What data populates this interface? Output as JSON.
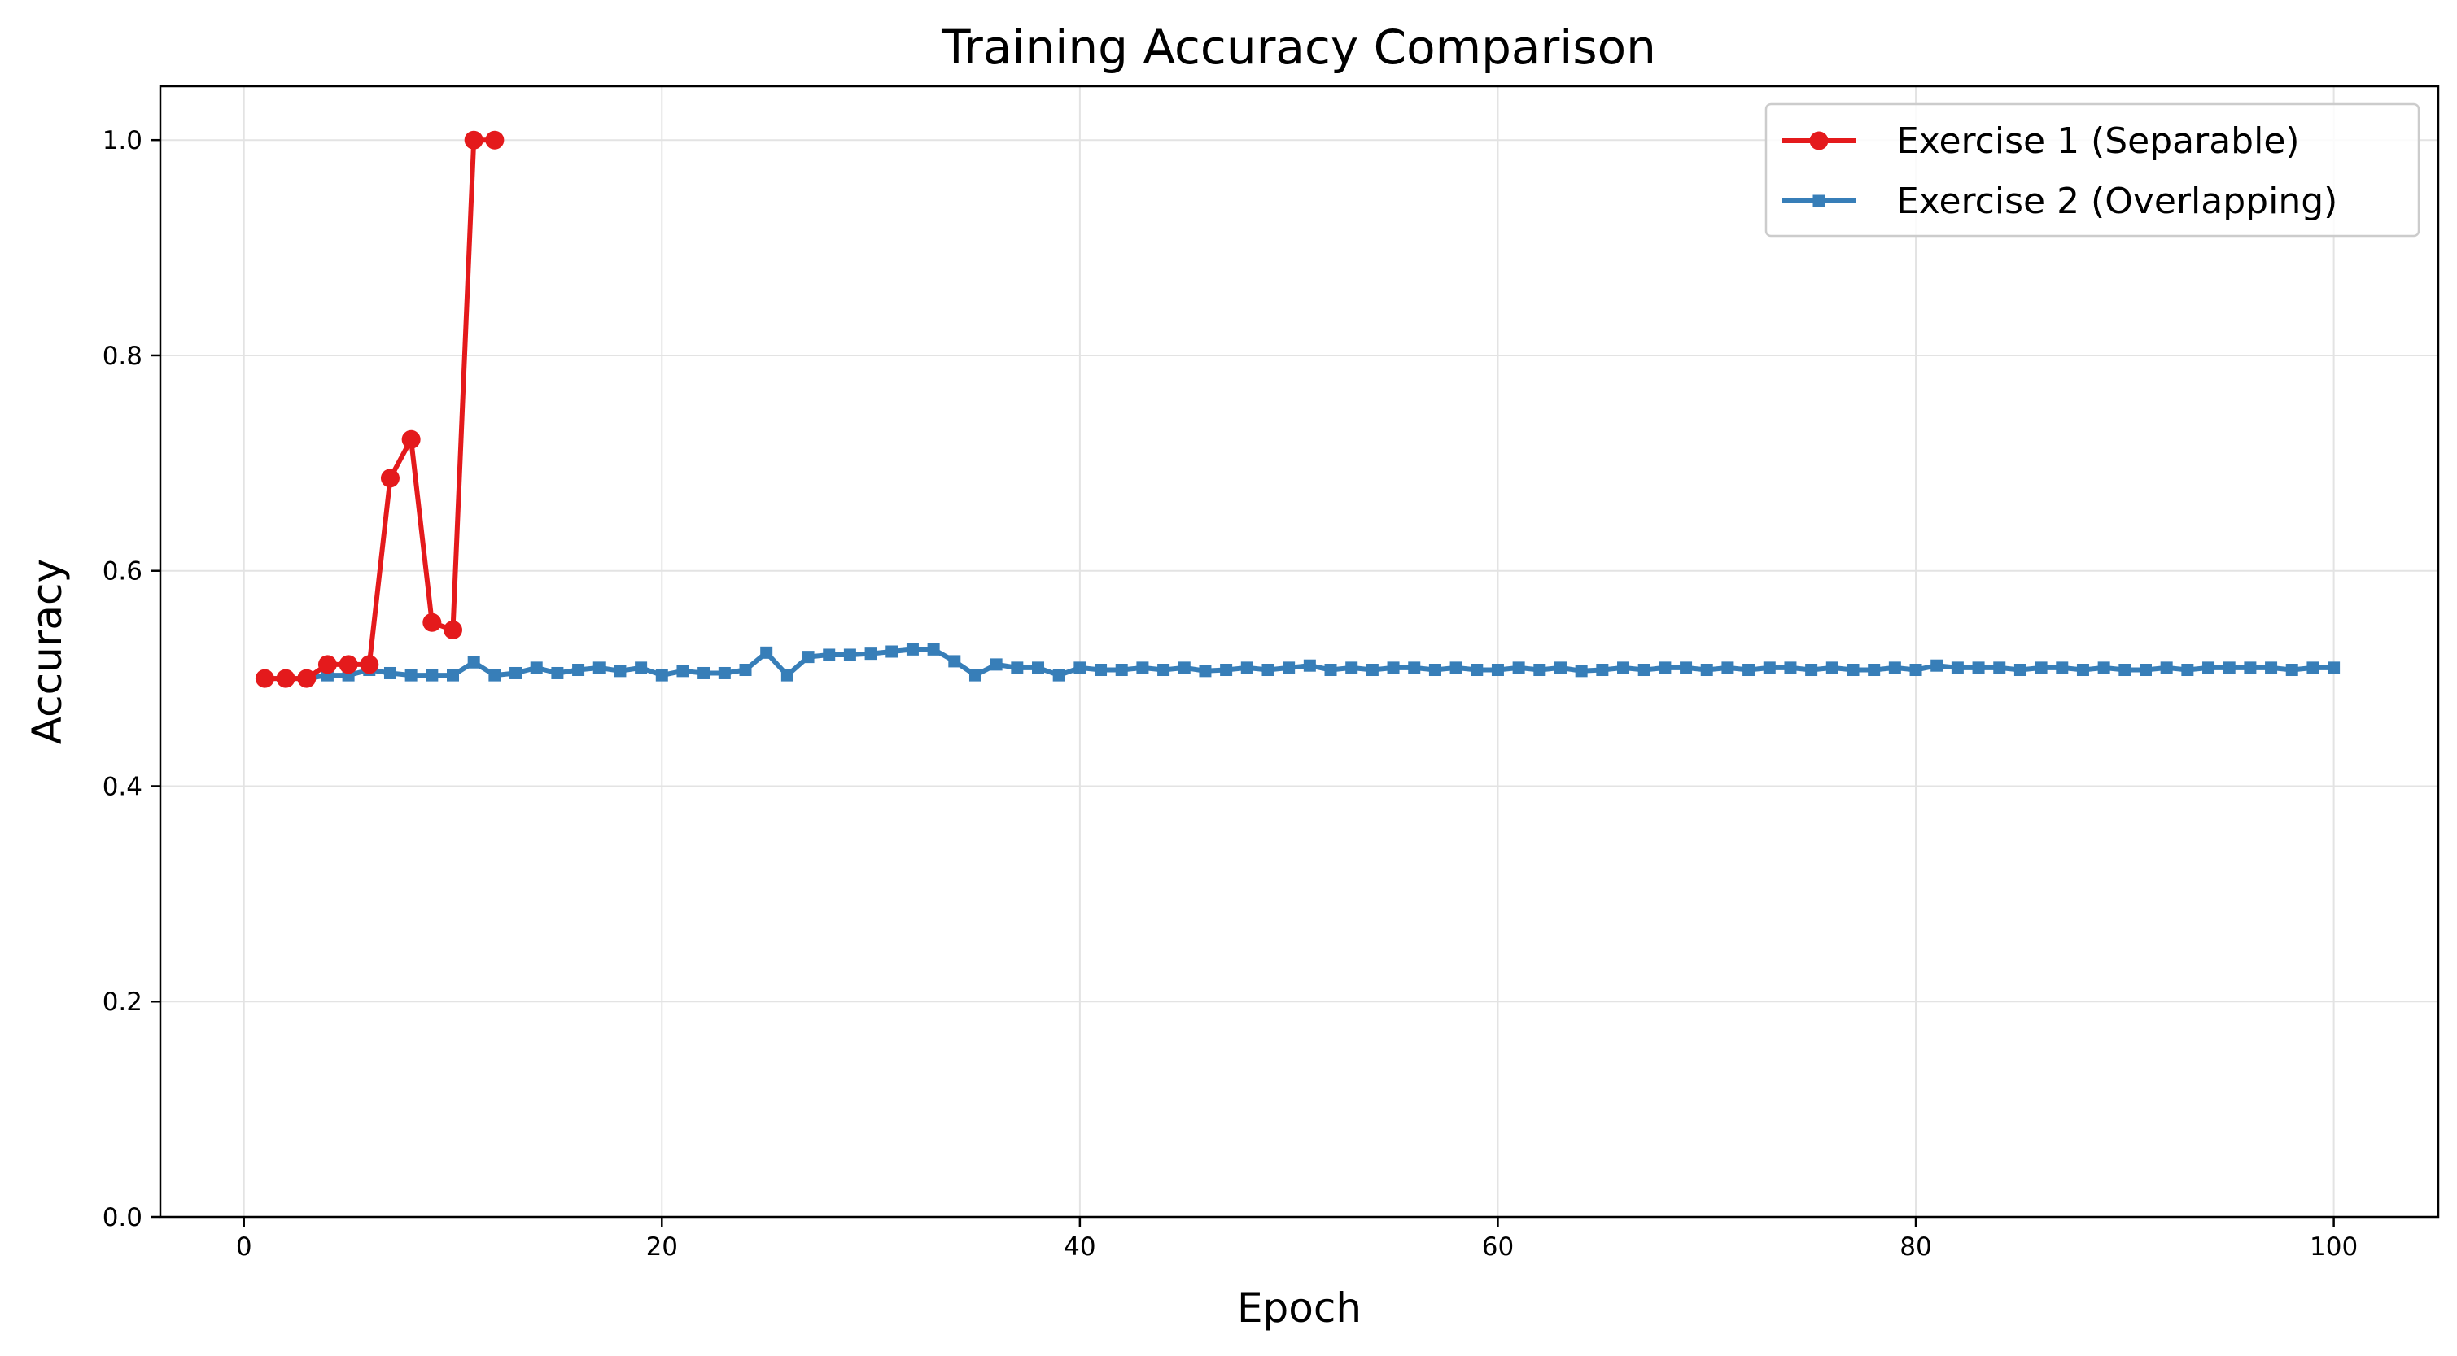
{
  "chart_data": {
    "type": "line",
    "title": "Training Accuracy Comparison",
    "xlabel": "Epoch",
    "ylabel": "Accuracy",
    "xlim": [
      -4,
      105
    ],
    "ylim": [
      0,
      1.05
    ],
    "xticks": [
      0,
      20,
      40,
      60,
      80,
      100
    ],
    "yticks": [
      0.0,
      0.2,
      0.4,
      0.6,
      0.8,
      1.0
    ],
    "xtick_labels": [
      "0",
      "20",
      "40",
      "60",
      "80",
      "100"
    ],
    "ytick_labels": [
      "0.0",
      "0.2",
      "0.4",
      "0.6",
      "0.8",
      "1.0"
    ],
    "grid": true,
    "legend_position": "top-right",
    "series": [
      {
        "name": "Exercise 1 (Separable)",
        "color": "#e41a1c",
        "marker": "circle",
        "x": [
          1,
          2,
          3,
          4,
          5,
          6,
          7,
          8,
          9,
          10,
          11,
          12
        ],
        "y": [
          0.5,
          0.5,
          0.5,
          0.513,
          0.513,
          0.513,
          0.686,
          0.722,
          0.552,
          0.545,
          1.0,
          1.0
        ]
      },
      {
        "name": "Exercise 2 (Overlapping)",
        "color": "#377eb8",
        "marker": "square",
        "x": [
          1,
          2,
          3,
          4,
          5,
          6,
          7,
          8,
          9,
          10,
          11,
          12,
          13,
          14,
          15,
          16,
          17,
          18,
          19,
          20,
          21,
          22,
          23,
          24,
          25,
          26,
          27,
          28,
          29,
          30,
          31,
          32,
          33,
          34,
          35,
          36,
          37,
          38,
          39,
          40,
          41,
          42,
          43,
          44,
          45,
          46,
          47,
          48,
          49,
          50,
          51,
          52,
          53,
          54,
          55,
          56,
          57,
          58,
          59,
          60,
          61,
          62,
          63,
          64,
          65,
          66,
          67,
          68,
          69,
          70,
          71,
          72,
          73,
          74,
          75,
          76,
          77,
          78,
          79,
          80,
          81,
          82,
          83,
          84,
          85,
          86,
          87,
          88,
          89,
          90,
          91,
          92,
          93,
          94,
          95,
          96,
          97,
          98,
          99,
          100
        ],
        "y": [
          0.5,
          0.5,
          0.5,
          0.503,
          0.503,
          0.508,
          0.505,
          0.503,
          0.503,
          0.503,
          0.515,
          0.503,
          0.505,
          0.51,
          0.505,
          0.508,
          0.51,
          0.507,
          0.51,
          0.503,
          0.507,
          0.505,
          0.505,
          0.508,
          0.524,
          0.503,
          0.52,
          0.522,
          0.522,
          0.523,
          0.525,
          0.527,
          0.527,
          0.516,
          0.503,
          0.513,
          0.51,
          0.51,
          0.503,
          0.51,
          0.508,
          0.508,
          0.51,
          0.508,
          0.51,
          0.507,
          0.508,
          0.51,
          0.508,
          0.51,
          0.512,
          0.508,
          0.51,
          0.508,
          0.51,
          0.51,
          0.508,
          0.51,
          0.508,
          0.508,
          0.51,
          0.508,
          0.51,
          0.507,
          0.508,
          0.51,
          0.508,
          0.51,
          0.51,
          0.508,
          0.51,
          0.508,
          0.51,
          0.51,
          0.508,
          0.51,
          0.508,
          0.508,
          0.51,
          0.508,
          0.512,
          0.51,
          0.51,
          0.51,
          0.508,
          0.51,
          0.51,
          0.508,
          0.51,
          0.508,
          0.508,
          0.51,
          0.508,
          0.51,
          0.51,
          0.51,
          0.51,
          0.508,
          0.51,
          0.51
        ]
      }
    ]
  }
}
